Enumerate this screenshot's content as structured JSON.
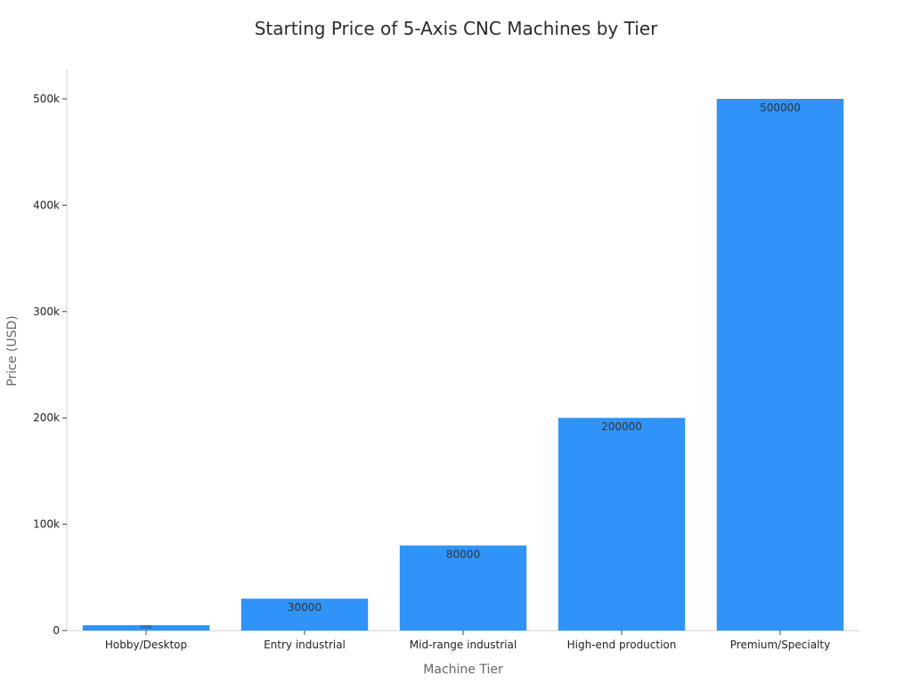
{
  "chart_data": {
    "type": "bar",
    "title": "Starting Price of 5-Axis CNC Machines by Tier",
    "xlabel": "Machine Tier",
    "ylabel": "Price (USD)",
    "categories": [
      "Hobby/Desktop",
      "Entry industrial",
      "Mid-range industrial",
      "High-end production",
      "Premium/Specialty"
    ],
    "values": [
      5000,
      30000,
      80000,
      200000,
      500000
    ],
    "data_labels": [
      "5000",
      "30000",
      "80000",
      "200000",
      "500000"
    ],
    "ylim": [
      0,
      525000
    ],
    "yticks": [
      0,
      100000,
      200000,
      300000,
      400000,
      500000
    ],
    "ytick_labels": [
      "0",
      "100k",
      "200k",
      "300k",
      "400k",
      "500k"
    ],
    "bar_color": "#2f93f7",
    "grid": false,
    "legend": "none"
  }
}
